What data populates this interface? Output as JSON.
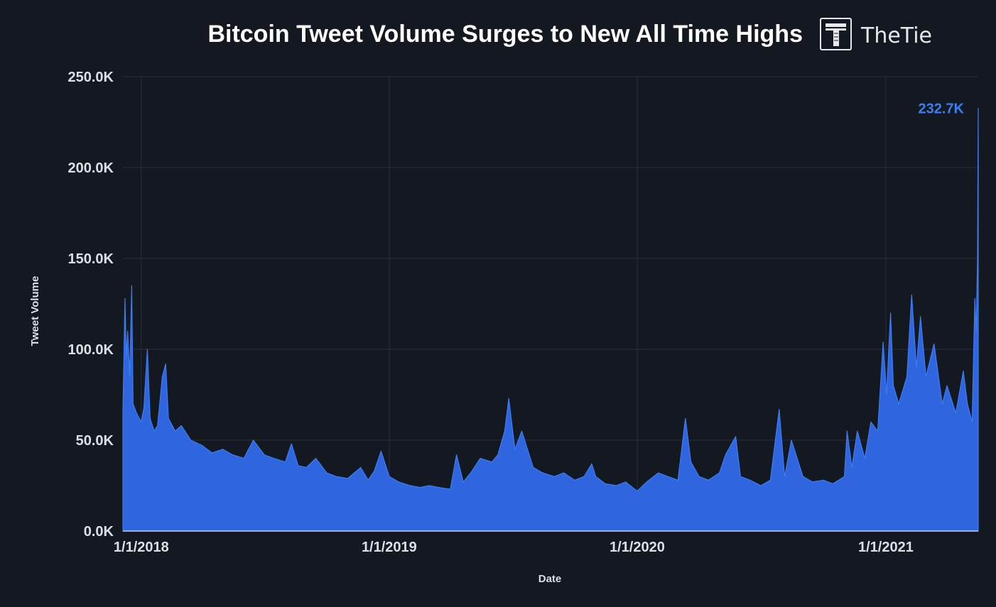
{
  "chart_data": {
    "type": "area",
    "title": "Bitcoin Tweet Volume Surges to New All Time Highs",
    "brand": "TheTie",
    "xlabel": "Date",
    "ylabel": "Tweet Volume",
    "ylim": [
      0,
      250000
    ],
    "y_ticks": [
      {
        "value": 0,
        "label": "0.0K"
      },
      {
        "value": 50000,
        "label": "50.0K"
      },
      {
        "value": 100000,
        "label": "100.0K"
      },
      {
        "value": 150000,
        "label": "150.0K"
      },
      {
        "value": 200000,
        "label": "200.0K"
      },
      {
        "value": 250000,
        "label": "250.0K"
      }
    ],
    "x_range": [
      "2017-12-05",
      "2021-05-17"
    ],
    "x_ticks": [
      {
        "value": "2018-01-01",
        "label": "1/1/2018"
      },
      {
        "value": "2019-01-01",
        "label": "1/1/2019"
      },
      {
        "value": "2020-01-01",
        "label": "1/1/2020"
      },
      {
        "value": "2021-01-01",
        "label": "1/1/2021"
      }
    ],
    "grid": true,
    "color": "#2f66e0",
    "peak": {
      "date": "2021-05-17",
      "value": 232700,
      "label": "232.7K"
    },
    "series": [
      {
        "points": [
          [
            "2017-12-05",
            65000
          ],
          [
            "2017-12-08",
            128000
          ],
          [
            "2017-12-10",
            95000
          ],
          [
            "2017-12-12",
            110000
          ],
          [
            "2017-12-15",
            85000
          ],
          [
            "2017-12-18",
            135000
          ],
          [
            "2017-12-20",
            70000
          ],
          [
            "2017-12-25",
            65000
          ],
          [
            "2018-01-01",
            60000
          ],
          [
            "2018-01-05",
            68000
          ],
          [
            "2018-01-10",
            100000
          ],
          [
            "2018-01-14",
            62000
          ],
          [
            "2018-01-20",
            55000
          ],
          [
            "2018-01-25",
            58000
          ],
          [
            "2018-02-01",
            85000
          ],
          [
            "2018-02-06",
            92000
          ],
          [
            "2018-02-10",
            62000
          ],
          [
            "2018-02-20",
            55000
          ],
          [
            "2018-03-01",
            58000
          ],
          [
            "2018-03-15",
            50000
          ],
          [
            "2018-04-01",
            47000
          ],
          [
            "2018-04-15",
            43000
          ],
          [
            "2018-05-01",
            45000
          ],
          [
            "2018-05-15",
            42000
          ],
          [
            "2018-06-01",
            40000
          ],
          [
            "2018-06-15",
            50000
          ],
          [
            "2018-07-01",
            42000
          ],
          [
            "2018-07-15",
            40000
          ],
          [
            "2018-08-01",
            38000
          ],
          [
            "2018-08-10",
            48000
          ],
          [
            "2018-08-20",
            36000
          ],
          [
            "2018-09-01",
            35000
          ],
          [
            "2018-09-15",
            40000
          ],
          [
            "2018-10-01",
            32000
          ],
          [
            "2018-10-15",
            30000
          ],
          [
            "2018-11-01",
            29000
          ],
          [
            "2018-11-20",
            35000
          ],
          [
            "2018-12-01",
            28000
          ],
          [
            "2018-12-10",
            33000
          ],
          [
            "2018-12-20",
            44000
          ],
          [
            "2019-01-01",
            30000
          ],
          [
            "2019-01-15",
            27000
          ],
          [
            "2019-02-01",
            25000
          ],
          [
            "2019-02-15",
            24000
          ],
          [
            "2019-03-01",
            25000
          ],
          [
            "2019-03-15",
            24000
          ],
          [
            "2019-04-01",
            23000
          ],
          [
            "2019-04-10",
            42000
          ],
          [
            "2019-04-20",
            27000
          ],
          [
            "2019-05-01",
            32000
          ],
          [
            "2019-05-15",
            40000
          ],
          [
            "2019-06-01",
            38000
          ],
          [
            "2019-06-10",
            42000
          ],
          [
            "2019-06-20",
            55000
          ],
          [
            "2019-06-26",
            73000
          ],
          [
            "2019-07-05",
            45000
          ],
          [
            "2019-07-15",
            55000
          ],
          [
            "2019-08-01",
            35000
          ],
          [
            "2019-08-15",
            32000
          ],
          [
            "2019-09-01",
            30000
          ],
          [
            "2019-09-15",
            32000
          ],
          [
            "2019-10-01",
            28000
          ],
          [
            "2019-10-15",
            30000
          ],
          [
            "2019-10-26",
            37000
          ],
          [
            "2019-11-01",
            30000
          ],
          [
            "2019-11-15",
            26000
          ],
          [
            "2019-12-01",
            25000
          ],
          [
            "2019-12-15",
            27000
          ],
          [
            "2020-01-01",
            22000
          ],
          [
            "2020-01-15",
            27000
          ],
          [
            "2020-02-01",
            32000
          ],
          [
            "2020-02-15",
            30000
          ],
          [
            "2020-03-01",
            28000
          ],
          [
            "2020-03-12",
            62000
          ],
          [
            "2020-03-20",
            38000
          ],
          [
            "2020-04-01",
            30000
          ],
          [
            "2020-04-15",
            28000
          ],
          [
            "2020-05-01",
            32000
          ],
          [
            "2020-05-10",
            42000
          ],
          [
            "2020-05-25",
            52000
          ],
          [
            "2020-06-01",
            30000
          ],
          [
            "2020-06-15",
            28000
          ],
          [
            "2020-07-01",
            25000
          ],
          [
            "2020-07-15",
            28000
          ],
          [
            "2020-07-28",
            67000
          ],
          [
            "2020-08-05",
            30000
          ],
          [
            "2020-08-15",
            50000
          ],
          [
            "2020-09-01",
            30000
          ],
          [
            "2020-09-15",
            27000
          ],
          [
            "2020-10-01",
            28000
          ],
          [
            "2020-10-15",
            26000
          ],
          [
            "2020-11-01",
            30000
          ],
          [
            "2020-11-05",
            55000
          ],
          [
            "2020-11-12",
            35000
          ],
          [
            "2020-11-20",
            55000
          ],
          [
            "2020-12-01",
            40000
          ],
          [
            "2020-12-10",
            60000
          ],
          [
            "2020-12-20",
            55000
          ],
          [
            "2020-12-28",
            104000
          ],
          [
            "2021-01-02",
            75000
          ],
          [
            "2021-01-08",
            120000
          ],
          [
            "2021-01-12",
            80000
          ],
          [
            "2021-01-20",
            70000
          ],
          [
            "2021-02-01",
            85000
          ],
          [
            "2021-02-08",
            130000
          ],
          [
            "2021-02-15",
            90000
          ],
          [
            "2021-02-21",
            118000
          ],
          [
            "2021-03-01",
            85000
          ],
          [
            "2021-03-13",
            103000
          ],
          [
            "2021-03-25",
            70000
          ],
          [
            "2021-04-01",
            80000
          ],
          [
            "2021-04-14",
            65000
          ],
          [
            "2021-04-25",
            88000
          ],
          [
            "2021-05-01",
            70000
          ],
          [
            "2021-05-08",
            60000
          ],
          [
            "2021-05-12",
            128000
          ],
          [
            "2021-05-14",
            110000
          ],
          [
            "2021-05-16",
            150000
          ],
          [
            "2021-05-17",
            232700
          ]
        ]
      }
    ]
  }
}
